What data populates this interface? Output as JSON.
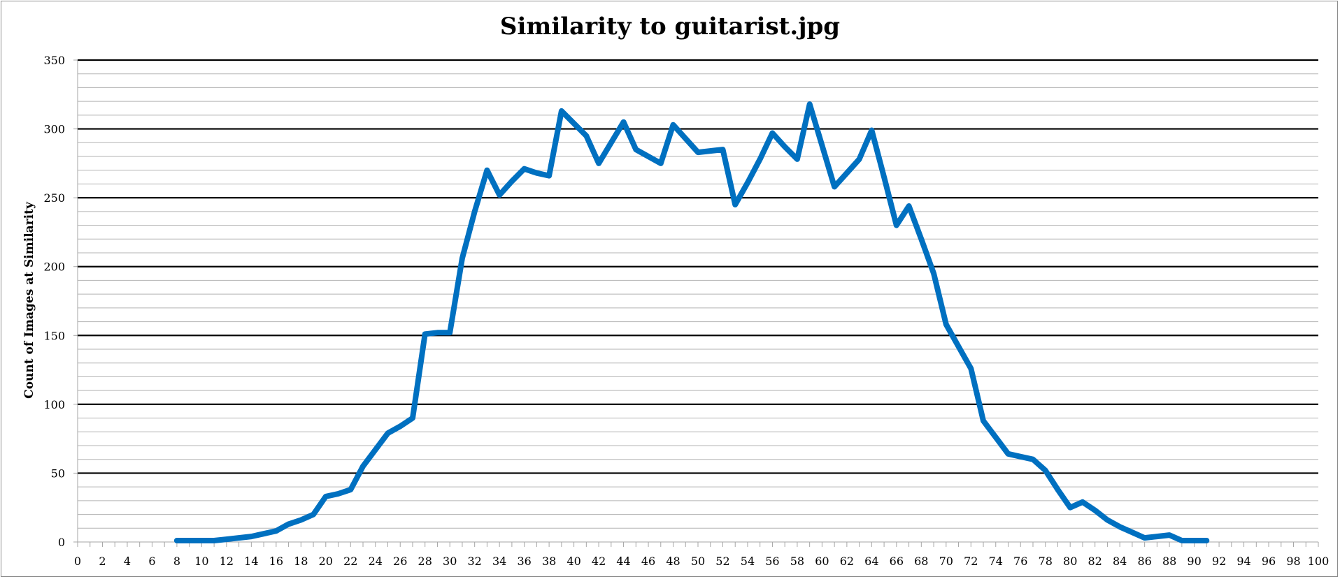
{
  "chart_data": {
    "type": "line",
    "title": "Similarity to guitarist.jpg",
    "xlabel": "",
    "ylabel": "Count of Images at Similarity",
    "xlim": [
      0,
      100
    ],
    "ylim": [
      0,
      350
    ],
    "x_ticks": [
      0,
      2,
      4,
      6,
      8,
      10,
      12,
      14,
      16,
      18,
      20,
      22,
      24,
      26,
      28,
      30,
      32,
      34,
      36,
      38,
      40,
      42,
      44,
      46,
      48,
      50,
      52,
      54,
      56,
      58,
      60,
      62,
      64,
      66,
      68,
      70,
      72,
      74,
      76,
      78,
      80,
      82,
      84,
      86,
      88,
      90,
      92,
      94,
      96,
      98,
      100
    ],
    "y_ticks": [
      0,
      50,
      100,
      150,
      200,
      250,
      300,
      350
    ],
    "y_minor_step": 10,
    "grid": true,
    "legend": "none",
    "series_color": "#0070C0",
    "series": [
      {
        "x": [
          8,
          9,
          10,
          11,
          12,
          13,
          14,
          15,
          16,
          17,
          18,
          19,
          20,
          21,
          22,
          23,
          24,
          25,
          26,
          27,
          28,
          29,
          30,
          31,
          32,
          33,
          34,
          35,
          36,
          37,
          38,
          39,
          40,
          41,
          42,
          43,
          44,
          45,
          46,
          47,
          48,
          49,
          50,
          51,
          52,
          53,
          54,
          55,
          56,
          57,
          58,
          59,
          60,
          61,
          62,
          63,
          64,
          65,
          66,
          67,
          68,
          69,
          70,
          71,
          72,
          73,
          74,
          75,
          76,
          77,
          78,
          79,
          80,
          81,
          82,
          83,
          84,
          85,
          86,
          87,
          88,
          89,
          90,
          91
        ],
        "values": [
          1,
          1,
          1,
          1,
          2,
          3,
          4,
          6,
          8,
          13,
          16,
          20,
          33,
          35,
          38,
          55,
          67,
          79,
          84,
          90,
          151,
          152,
          152,
          206,
          240,
          270,
          252,
          262,
          271,
          268,
          266,
          313,
          304,
          295,
          275,
          290,
          305,
          285,
          280,
          275,
          303,
          293,
          283,
          284,
          285,
          245,
          261,
          278,
          297,
          287,
          278,
          318,
          288,
          258,
          268,
          278,
          299,
          265,
          230,
          244,
          220,
          195,
          158,
          142,
          126,
          88,
          76,
          64,
          62,
          60,
          52,
          38,
          25,
          29,
          23,
          16,
          11,
          7,
          3,
          4,
          5,
          1,
          1,
          1
        ]
      }
    ]
  }
}
